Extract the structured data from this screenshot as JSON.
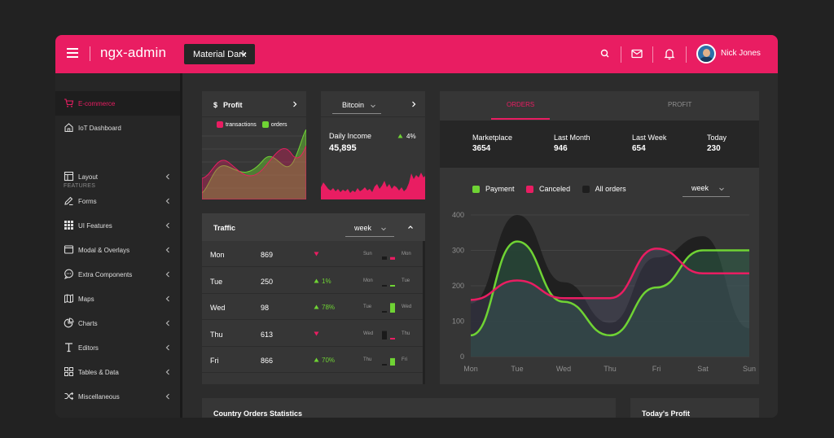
{
  "header": {
    "brand": "ngx-admin",
    "theme": "Material Dark",
    "user_name": "Nick Jones"
  },
  "sidebar": {
    "section_label": "FEATURES",
    "items": [
      {
        "label": "E-commerce",
        "icon": "cart-icon"
      },
      {
        "label": "IoT Dashboard",
        "icon": "home-icon"
      },
      {
        "label": "Layout",
        "icon": "layout-icon"
      },
      {
        "label": "Forms",
        "icon": "edit-icon"
      },
      {
        "label": "UI Features",
        "icon": "grid-icon"
      },
      {
        "label": "Modal & Overlays",
        "icon": "browser-icon"
      },
      {
        "label": "Extra Components",
        "icon": "message-icon"
      },
      {
        "label": "Maps",
        "icon": "map-icon"
      },
      {
        "label": "Charts",
        "icon": "pie-chart-icon"
      },
      {
        "label": "Editors",
        "icon": "text-icon"
      },
      {
        "label": "Tables & Data",
        "icon": "grid-icon"
      },
      {
        "label": "Miscellaneous",
        "icon": "shuffle-icon"
      }
    ]
  },
  "profit_card": {
    "currency": "$",
    "title": "Profit",
    "legend": [
      {
        "label": "transactions",
        "color": "#e91d62"
      },
      {
        "label": "orders",
        "color": "#6fd334"
      }
    ]
  },
  "bitcoin_card": {
    "selector": "Bitcoin",
    "label": "Daily Income",
    "value": "45,895",
    "change": "4%"
  },
  "traffic": {
    "title": "Traffic",
    "period": "week",
    "rows": [
      {
        "day": "Mon",
        "value": "869",
        "change": "",
        "dir": "down",
        "d1": "Sun",
        "d2": "Mon",
        "bar_a": 0.3,
        "bar_b": 0.25
      },
      {
        "day": "Tue",
        "value": "250",
        "change": "1%",
        "dir": "up",
        "d1": "Mon",
        "d2": "Tue",
        "bar_a": 0.1,
        "bar_b": 0.12
      },
      {
        "day": "Wed",
        "value": "98",
        "change": "78%",
        "dir": "up",
        "d1": "Tue",
        "d2": "Wed",
        "bar_a": 0.05,
        "bar_b": 0.9
      },
      {
        "day": "Thu",
        "value": "613",
        "change": "",
        "dir": "down",
        "d1": "Wed",
        "d2": "Thu",
        "bar_a": 0.8,
        "bar_b": 0.1
      },
      {
        "day": "Fri",
        "value": "866",
        "change": "70%",
        "dir": "up",
        "d1": "Thu",
        "d2": "Fri",
        "bar_a": 0.1,
        "bar_b": 0.7
      }
    ]
  },
  "orders_card": {
    "tabs": [
      "ORDERS",
      "PROFIT"
    ],
    "stats": [
      {
        "label": "Marketplace",
        "value": "3654"
      },
      {
        "label": "Last Month",
        "value": "946"
      },
      {
        "label": "Last Week",
        "value": "654"
      },
      {
        "label": "Today",
        "value": "230"
      }
    ],
    "legend": [
      {
        "label": "Payment",
        "color": "#6fd334"
      },
      {
        "label": "Canceled",
        "color": "#e91d62"
      },
      {
        "label": "All orders",
        "color": "#1e1e1e"
      }
    ],
    "period": "week"
  },
  "chart_data": {
    "type": "line",
    "categories": [
      "Mon",
      "Tue",
      "Wed",
      "Thu",
      "Fri",
      "Sat",
      "Sun"
    ],
    "ylim": [
      0,
      400
    ],
    "yticks": [
      "0",
      "100",
      "200",
      "300",
      "400"
    ],
    "series": [
      {
        "name": "All orders",
        "color": "#1e1e1e",
        "values": [
          150,
          400,
          210,
          95,
          280,
          340,
          80
        ]
      },
      {
        "name": "Payment",
        "color": "#6fd334",
        "values": [
          60,
          325,
          155,
          60,
          195,
          300,
          300
        ]
      },
      {
        "name": "Canceled",
        "color": "#e91d62",
        "values": [
          160,
          215,
          165,
          165,
          305,
          235,
          235
        ]
      }
    ]
  },
  "bottom": {
    "country_title": "Country Orders Statistics",
    "profit_title": "Today's Profit"
  },
  "colors": {
    "accent": "#e91d62",
    "green": "#6fd334",
    "bg": "#2c2c2c",
    "card": "#363636"
  }
}
